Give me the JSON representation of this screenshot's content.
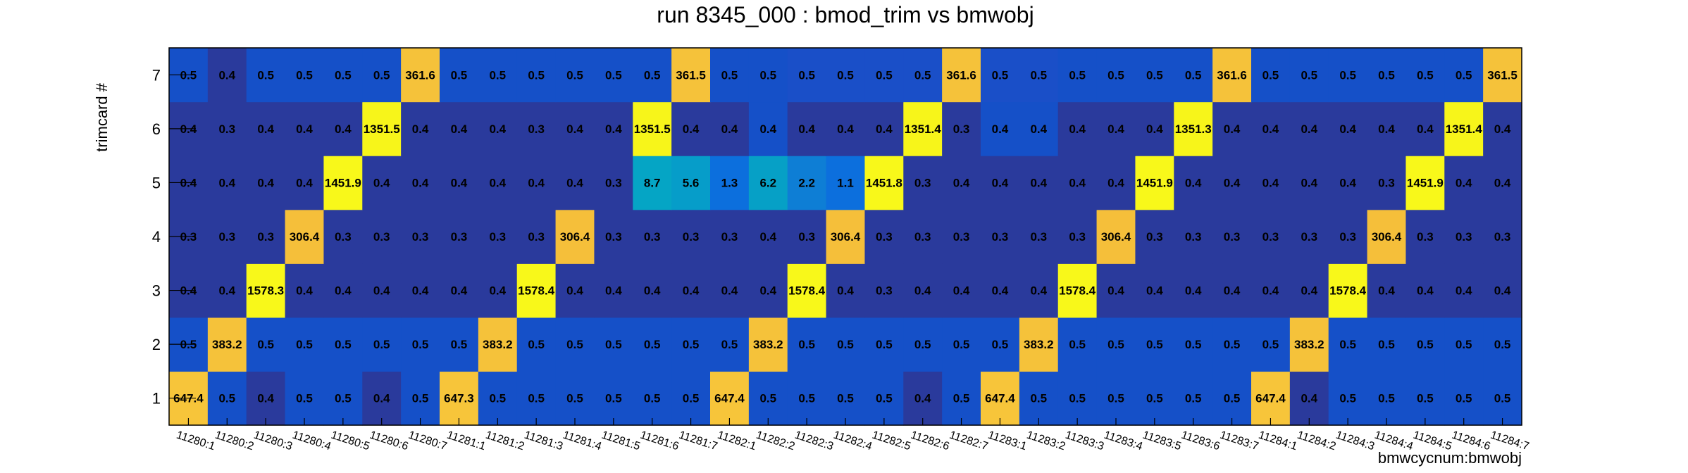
{
  "chart_data": {
    "type": "heatmap",
    "title": "run 8345_000 : bmod_trim vs bmwobj",
    "xlabel": "bmwcycnum:bmwobj",
    "ylabel": "trimcard #",
    "x_categories": [
      "11280:1",
      "11280:2",
      "11280:3",
      "11280:4",
      "11280:5",
      "11280:6",
      "11280:7",
      "11281:1",
      "11281:2",
      "11281:3",
      "11281:4",
      "11281:5",
      "11281:6",
      "11281:7",
      "11282:1",
      "11282:2",
      "11282:3",
      "11282:4",
      "11282:5",
      "11282:6",
      "11282:7",
      "11283:1",
      "11283:2",
      "11283:3",
      "11283:4",
      "11283:5",
      "11283:6",
      "11283:7",
      "11284:1",
      "11284:2",
      "11284:3",
      "11284:4",
      "11284:5",
      "11284:6",
      "11284:7"
    ],
    "y_categories": [
      "1",
      "2",
      "3",
      "4",
      "5",
      "6",
      "7"
    ],
    "values": [
      [
        "647.4",
        "0.5",
        "0.4",
        "0.5",
        "0.5",
        "0.4",
        "0.5",
        "647.3",
        "0.5",
        "0.5",
        "0.5",
        "0.5",
        "0.5",
        "0.5",
        "647.4",
        "0.5",
        "0.5",
        "0.5",
        "0.5",
        "0.4",
        "0.5",
        "647.4",
        "0.5",
        "0.5",
        "0.5",
        "0.5",
        "0.5",
        "0.5",
        "647.4",
        "0.4",
        "0.5",
        "0.5",
        "0.5",
        "0.5",
        "0.5"
      ],
      [
        "0.5",
        "383.2",
        "0.5",
        "0.5",
        "0.5",
        "0.5",
        "0.5",
        "0.5",
        "383.2",
        "0.5",
        "0.5",
        "0.5",
        "0.5",
        "0.5",
        "0.5",
        "383.2",
        "0.5",
        "0.5",
        "0.5",
        "0.5",
        "0.5",
        "0.5",
        "383.2",
        "0.5",
        "0.5",
        "0.5",
        "0.5",
        "0.5",
        "0.5",
        "383.2",
        "0.5",
        "0.5",
        "0.5",
        "0.5",
        "0.5"
      ],
      [
        "0.4",
        "0.4",
        "1578.3",
        "0.4",
        "0.4",
        "0.4",
        "0.4",
        "0.4",
        "0.4",
        "1578.4",
        "0.4",
        "0.4",
        "0.4",
        "0.4",
        "0.4",
        "0.4",
        "1578.4",
        "0.4",
        "0.3",
        "0.4",
        "0.4",
        "0.4",
        "0.4",
        "1578.4",
        "0.4",
        "0.4",
        "0.4",
        "0.4",
        "0.4",
        "0.4",
        "1578.4",
        "0.4",
        "0.4",
        "0.4",
        "0.4"
      ],
      [
        "0.3",
        "0.3",
        "0.3",
        "306.4",
        "0.3",
        "0.3",
        "0.3",
        "0.3",
        "0.3",
        "0.3",
        "306.4",
        "0.3",
        "0.3",
        "0.3",
        "0.3",
        "0.4",
        "0.3",
        "306.4",
        "0.3",
        "0.3",
        "0.3",
        "0.3",
        "0.3",
        "0.3",
        "306.4",
        "0.3",
        "0.3",
        "0.3",
        "0.3",
        "0.3",
        "0.3",
        "306.4",
        "0.3",
        "0.3",
        "0.3"
      ],
      [
        "0.4",
        "0.4",
        "0.4",
        "0.4",
        "1451.9",
        "0.4",
        "0.4",
        "0.4",
        "0.4",
        "0.4",
        "0.4",
        "0.3",
        "8.7",
        "5.6",
        "1.3",
        "6.2",
        "2.2",
        "1.1",
        "1451.8",
        "0.3",
        "0.4",
        "0.4",
        "0.4",
        "0.4",
        "0.4",
        "1451.9",
        "0.4",
        "0.4",
        "0.4",
        "0.4",
        "0.4",
        "0.3",
        "1451.9",
        "0.4",
        "0.4"
      ],
      [
        "0.4",
        "0.3",
        "0.4",
        "0.4",
        "0.4",
        "1351.5",
        "0.4",
        "0.4",
        "0.4",
        "0.3",
        "0.4",
        "0.4",
        "1351.5",
        "0.4",
        "0.4",
        "0.4",
        "0.4",
        "0.4",
        "0.4",
        "1351.4",
        "0.3",
        "0.4",
        "0.4",
        "0.4",
        "0.4",
        "0.4",
        "1351.3",
        "0.4",
        "0.4",
        "0.4",
        "0.4",
        "0.4",
        "0.4",
        "1351.4",
        "0.4"
      ],
      [
        "0.5",
        "0.4",
        "0.5",
        "0.5",
        "0.5",
        "0.5",
        "361.6",
        "0.5",
        "0.5",
        "0.5",
        "0.5",
        "0.5",
        "0.5",
        "361.5",
        "0.5",
        "0.5",
        "0.5",
        "0.5",
        "0.5",
        "0.5",
        "361.6",
        "0.5",
        "0.5",
        "0.5",
        "0.5",
        "0.5",
        "0.5",
        "361.6",
        "0.5",
        "0.5",
        "0.5",
        "0.5",
        "0.5",
        "0.5",
        "361.5"
      ]
    ],
    "colors": {
      "0.3": "#2a3a9c",
      "0.4": "#2a3a9c",
      "0.5": "#1550c8",
      "1.1": "#0c6fdd",
      "1.3": "#0c6fdd",
      "2.2": "#0e7ed5",
      "5.6": "#069dc9",
      "6.2": "#06a0c6",
      "8.7": "#05a5c5",
      "306.4": "#f5bf3a",
      "361.5": "#f5c23a",
      "361.6": "#f5c23a",
      "383.2": "#f5c23a",
      "647.4": "#f7c53a",
      "647.3": "#f7c53a",
      "1351.5": "#f7f51a",
      "1351.4": "#f7f51a",
      "1351.3": "#f7f51a",
      "1451.9": "#f8f81a",
      "1451.8": "#f8f81a",
      "1578.3": "#f8f81a",
      "1578.4": "#f8f81a"
    },
    "overrides": [
      {
        "row": "7",
        "cols": [
          "11282:3",
          "11282:4",
          "11282:5",
          "11282:6",
          "11283:1",
          "11283:2"
        ],
        "color": "#1a4fc8"
      },
      {
        "row": "6",
        "cols": [
          "11282:2",
          "11283:1",
          "11283:2"
        ],
        "color": "#1550c8"
      }
    ]
  }
}
